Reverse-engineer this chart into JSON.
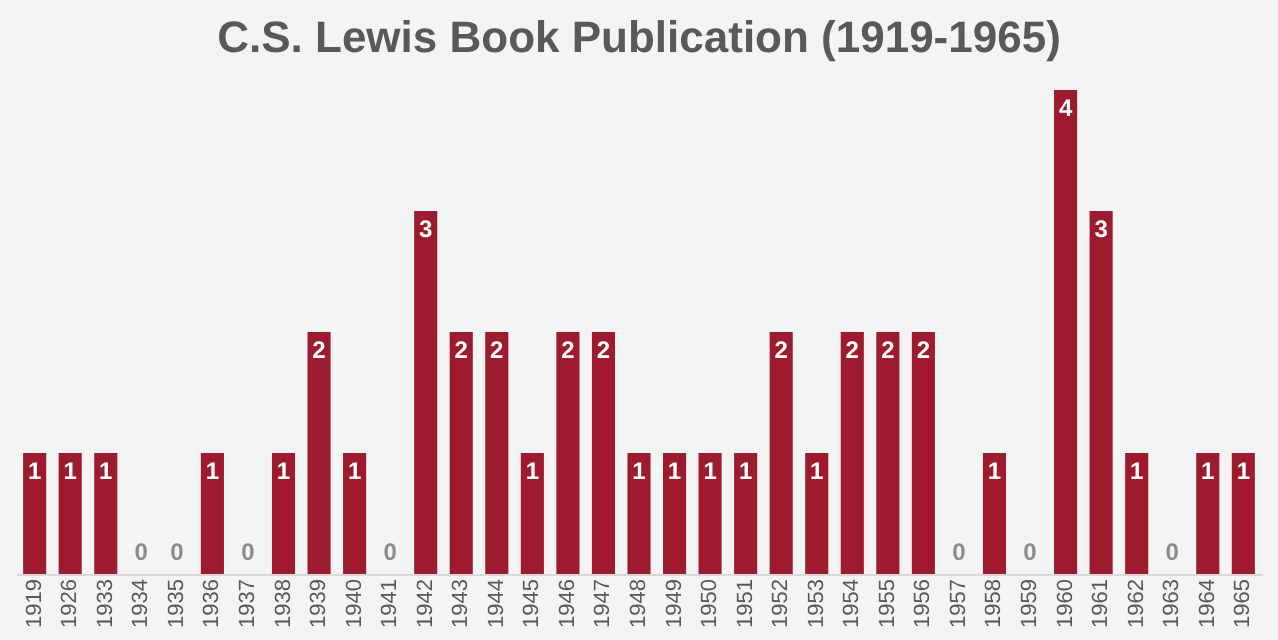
{
  "chart_data": {
    "type": "bar",
    "title": "C.S. Lewis Book Publication (1919-1965)",
    "categories": [
      "1919",
      "1926",
      "1933",
      "1934",
      "1935",
      "1936",
      "1937",
      "1938",
      "1939",
      "1940",
      "1941",
      "1942",
      "1943",
      "1944",
      "1945",
      "1946",
      "1947",
      "1948",
      "1949",
      "1950",
      "1951",
      "1952",
      "1953",
      "1954",
      "1955",
      "1956",
      "1957",
      "1958",
      "1959",
      "1960",
      "1961",
      "1962",
      "1963",
      "1964",
      "1965"
    ],
    "values": [
      1,
      1,
      1,
      0,
      0,
      1,
      0,
      1,
      2,
      1,
      0,
      3,
      2,
      2,
      1,
      2,
      2,
      1,
      1,
      1,
      1,
      2,
      1,
      2,
      2,
      2,
      0,
      1,
      0,
      4,
      3,
      1,
      0,
      1,
      1
    ],
    "color": "#9e1b2e",
    "data_labels": true,
    "grid": false,
    "tick_labels": "x"
  }
}
